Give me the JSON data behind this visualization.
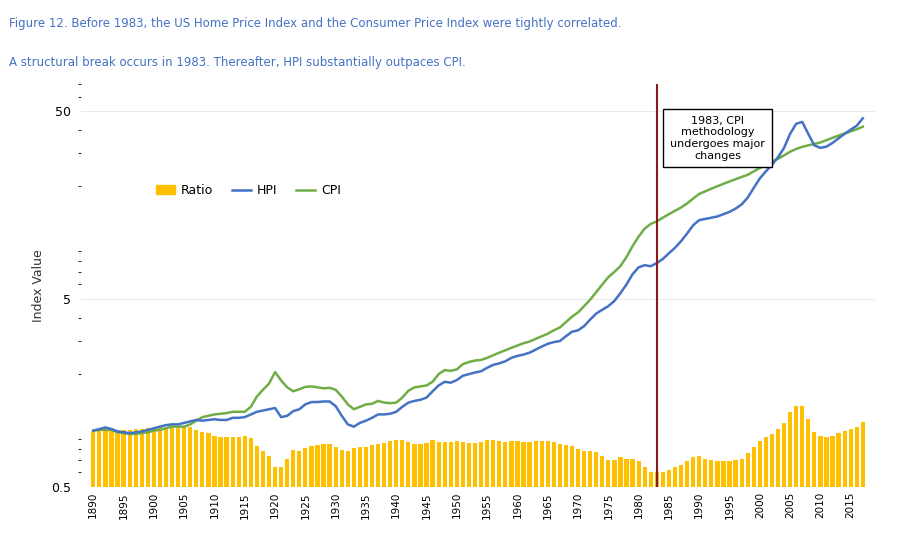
{
  "title_line1": "Figure 12. Before 1983, the US Home Price Index and the Consumer Price Index were tightly correlated.",
  "title_line2": "A structural break occurs in 1983. Thereafter, HPI substantially outpaces CPI.",
  "title_color": "#4472C4",
  "ylabel": "Index Value",
  "annotation_text": "1983, CPI\nmethodology\nundergoes major\nchanges",
  "vline_year": 1983,
  "vline_color": "#8B1A1A",
  "hpi_color": "#4472C4",
  "cpi_color": "#70AD47",
  "ratio_color": "#FFC000",
  "years": [
    1890,
    1891,
    1892,
    1893,
    1894,
    1895,
    1896,
    1897,
    1898,
    1899,
    1900,
    1901,
    1902,
    1903,
    1904,
    1905,
    1906,
    1907,
    1908,
    1909,
    1910,
    1911,
    1912,
    1913,
    1914,
    1915,
    1916,
    1917,
    1918,
    1919,
    1920,
    1921,
    1922,
    1923,
    1924,
    1925,
    1926,
    1927,
    1928,
    1929,
    1930,
    1931,
    1932,
    1933,
    1934,
    1935,
    1936,
    1937,
    1938,
    1939,
    1940,
    1941,
    1942,
    1943,
    1944,
    1945,
    1946,
    1947,
    1948,
    1949,
    1950,
    1951,
    1952,
    1953,
    1954,
    1955,
    1956,
    1957,
    1958,
    1959,
    1960,
    1961,
    1962,
    1963,
    1964,
    1965,
    1966,
    1967,
    1968,
    1969,
    1970,
    1971,
    1972,
    1973,
    1974,
    1975,
    1976,
    1977,
    1978,
    1979,
    1980,
    1981,
    1982,
    1983,
    1984,
    1985,
    1986,
    1987,
    1988,
    1989,
    1990,
    1991,
    1992,
    1993,
    1994,
    1995,
    1996,
    1997,
    1998,
    1999,
    2000,
    2001,
    2002,
    2003,
    2004,
    2005,
    2006,
    2007,
    2008,
    2009,
    2010,
    2011,
    2012,
    2013,
    2014,
    2015,
    2016,
    2017
  ],
  "hpi": [
    1.0,
    1.02,
    1.04,
    1.02,
    0.99,
    0.98,
    0.97,
    0.98,
    0.99,
    1.01,
    1.03,
    1.05,
    1.07,
    1.08,
    1.08,
    1.1,
    1.12,
    1.14,
    1.13,
    1.14,
    1.15,
    1.14,
    1.14,
    1.17,
    1.17,
    1.18,
    1.22,
    1.26,
    1.28,
    1.3,
    1.32,
    1.18,
    1.2,
    1.27,
    1.3,
    1.38,
    1.42,
    1.42,
    1.43,
    1.43,
    1.35,
    1.2,
    1.08,
    1.05,
    1.1,
    1.13,
    1.17,
    1.22,
    1.22,
    1.23,
    1.26,
    1.34,
    1.41,
    1.44,
    1.46,
    1.5,
    1.62,
    1.74,
    1.82,
    1.8,
    1.86,
    1.96,
    2.0,
    2.04,
    2.07,
    2.16,
    2.24,
    2.28,
    2.34,
    2.44,
    2.5,
    2.54,
    2.6,
    2.7,
    2.8,
    2.9,
    2.96,
    3.0,
    3.18,
    3.36,
    3.42,
    3.6,
    3.9,
    4.2,
    4.4,
    4.6,
    4.9,
    5.4,
    6.0,
    6.8,
    7.4,
    7.6,
    7.5,
    7.8,
    8.2,
    8.8,
    9.4,
    10.2,
    11.2,
    12.4,
    13.2,
    13.4,
    13.6,
    13.8,
    14.2,
    14.6,
    15.2,
    16.0,
    17.4,
    19.6,
    22.0,
    24.0,
    26.0,
    28.5,
    32.0,
    38.0,
    43.0,
    44.0,
    38.0,
    33.0,
    32.0,
    32.5,
    34.0,
    36.0,
    38.0,
    40.0,
    42.0,
    46.0
  ],
  "cpi": [
    1.0,
    1.01,
    1.01,
    1.01,
    0.98,
    0.97,
    0.96,
    0.96,
    0.97,
    0.98,
    1.0,
    1.01,
    1.03,
    1.05,
    1.05,
    1.05,
    1.08,
    1.13,
    1.18,
    1.2,
    1.22,
    1.23,
    1.24,
    1.26,
    1.26,
    1.26,
    1.34,
    1.52,
    1.65,
    1.78,
    2.05,
    1.85,
    1.7,
    1.62,
    1.66,
    1.71,
    1.72,
    1.7,
    1.68,
    1.69,
    1.65,
    1.52,
    1.38,
    1.3,
    1.34,
    1.38,
    1.39,
    1.44,
    1.41,
    1.4,
    1.41,
    1.5,
    1.63,
    1.7,
    1.72,
    1.74,
    1.82,
    2.0,
    2.1,
    2.08,
    2.12,
    2.26,
    2.32,
    2.36,
    2.38,
    2.44,
    2.52,
    2.6,
    2.68,
    2.76,
    2.84,
    2.92,
    2.98,
    3.08,
    3.18,
    3.28,
    3.42,
    3.54,
    3.78,
    4.04,
    4.26,
    4.6,
    4.98,
    5.46,
    6.0,
    6.56,
    7.0,
    7.52,
    8.4,
    9.6,
    10.8,
    11.9,
    12.6,
    13.0,
    13.6,
    14.2,
    14.8,
    15.4,
    16.2,
    17.2,
    18.2,
    18.8,
    19.4,
    20.0,
    20.6,
    21.2,
    21.8,
    22.4,
    23.0,
    24.0,
    25.0,
    26.0,
    27.0,
    28.0,
    29.2,
    30.5,
    31.6,
    32.4,
    33.0,
    33.6,
    34.2,
    35.2,
    36.2,
    37.2,
    38.2,
    39.2,
    40.2,
    41.5
  ],
  "ratio": [
    1.0,
    1.01,
    1.03,
    1.01,
    1.01,
    1.01,
    1.01,
    1.02,
    1.02,
    1.03,
    1.03,
    1.04,
    1.04,
    1.03,
    1.03,
    1.05,
    1.04,
    1.01,
    0.98,
    0.97,
    0.94,
    0.93,
    0.92,
    0.93,
    0.93,
    0.94,
    0.91,
    0.83,
    0.78,
    0.73,
    0.64,
    0.64,
    0.71,
    0.79,
    0.78,
    0.81,
    0.83,
    0.84,
    0.85,
    0.85,
    0.82,
    0.79,
    0.78,
    0.81,
    0.82,
    0.82,
    0.84,
    0.85,
    0.86,
    0.88,
    0.89,
    0.89,
    0.87,
    0.85,
    0.85,
    0.86,
    0.89,
    0.87,
    0.87,
    0.87,
    0.88,
    0.87,
    0.86,
    0.86,
    0.87,
    0.89,
    0.89,
    0.88,
    0.87,
    0.88,
    0.88,
    0.87,
    0.87,
    0.88,
    0.88,
    0.88,
    0.87,
    0.85,
    0.84,
    0.83,
    0.8,
    0.78,
    0.78,
    0.77,
    0.73,
    0.7,
    0.7,
    0.72,
    0.71,
    0.71,
    0.69,
    0.64,
    0.6,
    0.6,
    0.6,
    0.62,
    0.64,
    0.66,
    0.69,
    0.72,
    0.73,
    0.71,
    0.7,
    0.69,
    0.69,
    0.69,
    0.7,
    0.71,
    0.76,
    0.82,
    0.88,
    0.92,
    0.96,
    1.02,
    1.1,
    1.25,
    1.36,
    1.36,
    1.15,
    0.98,
    0.94,
    0.92,
    0.94,
    0.97,
    0.99,
    1.02,
    1.04,
    1.11
  ],
  "xlim": [
    1888,
    2019
  ],
  "ylim_log": [
    0.5,
    70
  ],
  "bg_color": "#FFFFFF"
}
